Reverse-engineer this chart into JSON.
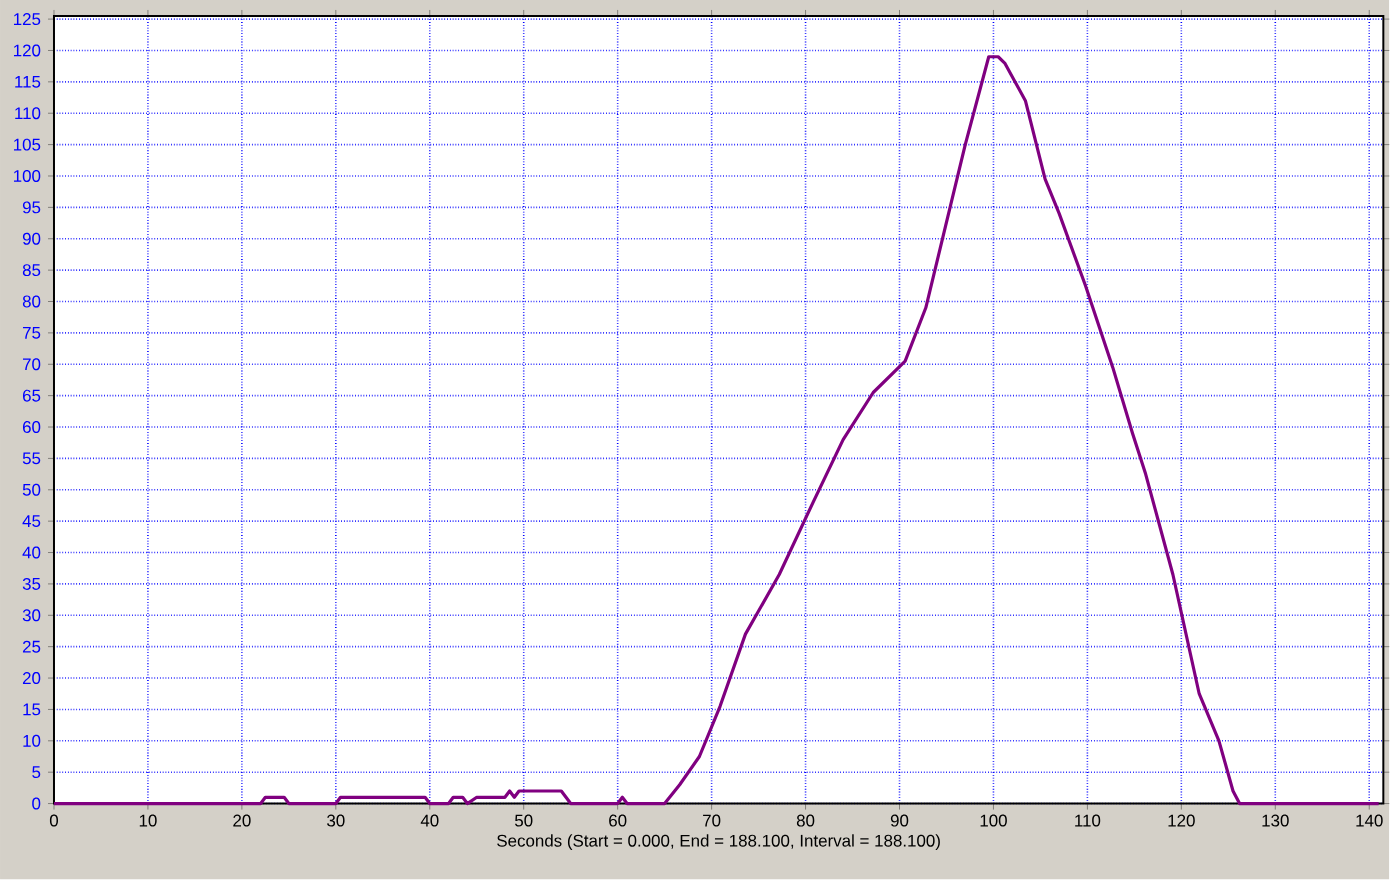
{
  "chart_data": {
    "type": "line",
    "xlabel": "Seconds (Start = 0.000,  End = 188.100,  Interval =  188.100)",
    "series": [
      {
        "color": "#800080",
        "x": [
          0,
          22,
          22.5,
          24.5,
          25,
          30,
          30.5,
          39.5,
          40,
          42,
          42.5,
          43.5,
          44,
          45,
          48,
          48.5,
          49,
          49.5,
          54,
          54.5,
          55,
          60,
          60.5,
          61,
          65,
          66.6,
          68.7,
          70.9,
          73.6,
          77.2,
          80.8,
          84,
          87.2,
          90.6,
          92.8,
          94.9,
          97,
          99.5,
          100.5,
          101.2,
          103.4,
          105.5,
          107,
          109.8,
          112.7,
          114.8,
          116.2,
          119.1,
          121.9,
          124,
          125.5,
          126.2,
          134,
          141
        ],
        "values": [
          0,
          0,
          1,
          1,
          0,
          0,
          1,
          1,
          0,
          0,
          1,
          1,
          0,
          1,
          1,
          2,
          1,
          2,
          2,
          1,
          0,
          0,
          1,
          0,
          0,
          3,
          7.5,
          15.5,
          27,
          36.5,
          48,
          58,
          65.5,
          70.5,
          79,
          92,
          105,
          119,
          119,
          118,
          112,
          99.5,
          94,
          82.5,
          69.5,
          59,
          52.5,
          36.5,
          17.5,
          10,
          2,
          0,
          0,
          0
        ]
      }
    ],
    "xlim": [
      0,
      141.5
    ],
    "xticks": [
      0,
      10,
      20,
      30,
      40,
      50,
      60,
      70,
      80,
      90,
      100,
      110,
      120,
      130,
      140
    ],
    "ylim": [
      0,
      125.5
    ],
    "yticks": [
      0,
      5,
      10,
      15,
      20,
      25,
      30,
      35,
      40,
      45,
      50,
      55,
      60,
      65,
      70,
      75,
      80,
      85,
      90,
      95,
      100,
      105,
      110,
      115,
      120,
      125
    ],
    "grid": true,
    "marker": "none",
    "line_style": "solid"
  }
}
